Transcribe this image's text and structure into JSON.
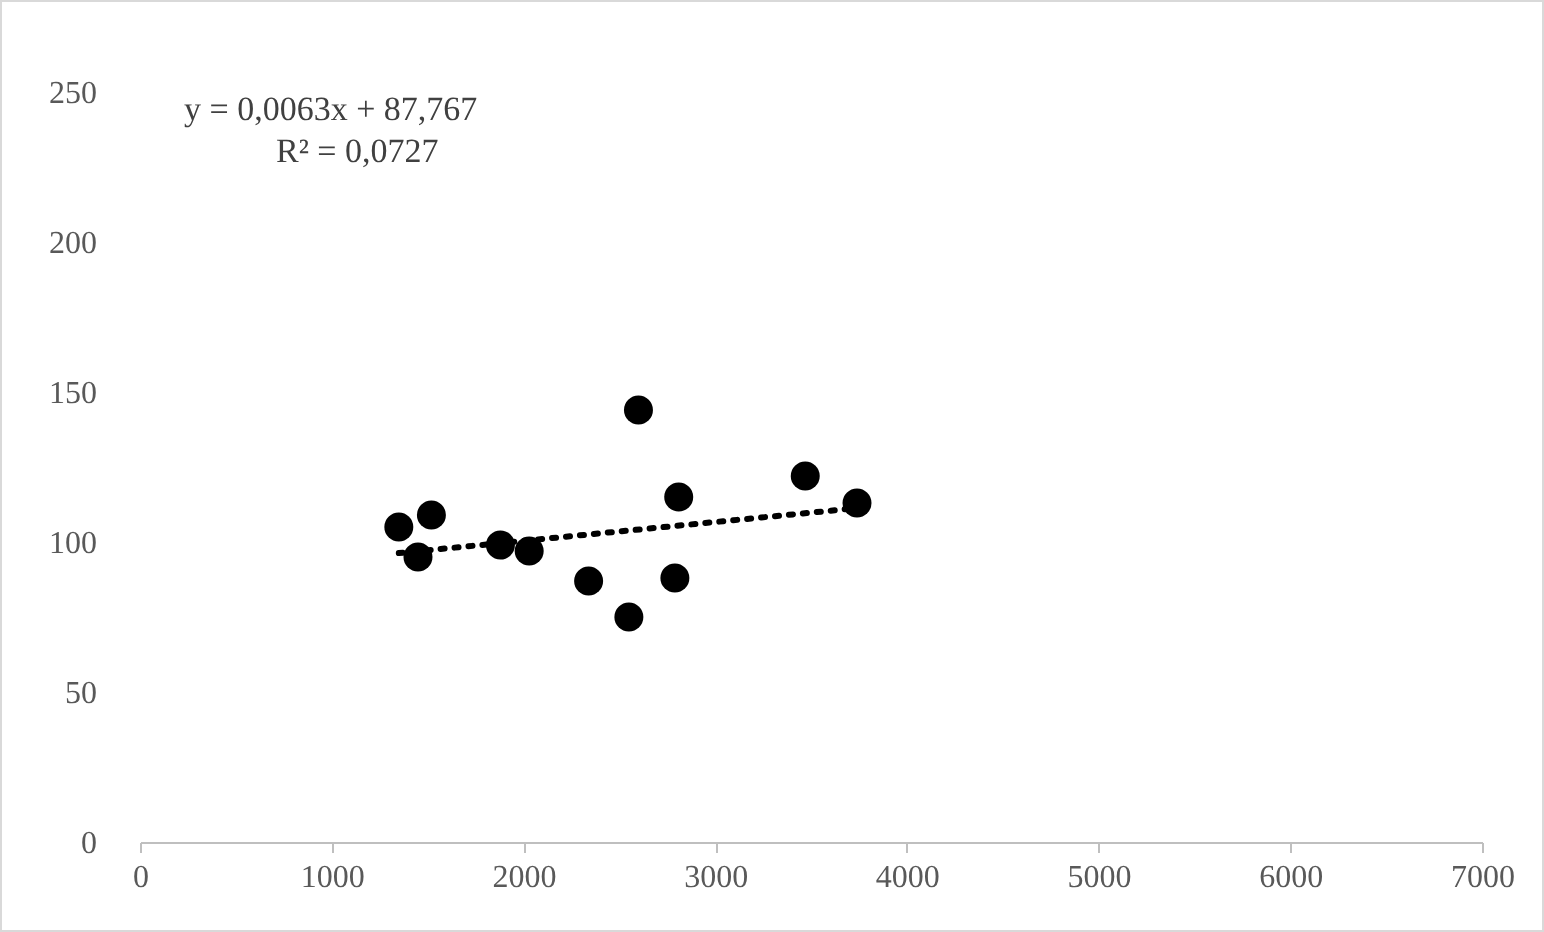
{
  "chart_data": {
    "type": "scatter",
    "xlim": [
      0,
      7000
    ],
    "xticks": [
      0,
      1000,
      2000,
      3000,
      4000,
      5000,
      6000,
      7000
    ],
    "ylim": [
      0,
      250
    ],
    "yticks": [
      0,
      50,
      100,
      150,
      200,
      250
    ],
    "annotations": [
      "y = 0,0063x + 87,767",
      "R² = 0,0727"
    ],
    "series": [
      {
        "marker": "circle",
        "color": "#000000",
        "x": [
          1350,
          1520,
          1450,
          1880,
          2030,
          2340,
          2550,
          2600,
          2810,
          2790,
          3470,
          3740
        ],
        "values": [
          105,
          109,
          95,
          99,
          97,
          87,
          75,
          144,
          115,
          88,
          122,
          113
        ]
      },
      {
        "type": "line",
        "marker": "none",
        "line_style": "dotted",
        "color": "#000000",
        "x": [
          1350,
          3740
        ],
        "values": [
          96.3,
          111.3
        ]
      }
    ]
  }
}
